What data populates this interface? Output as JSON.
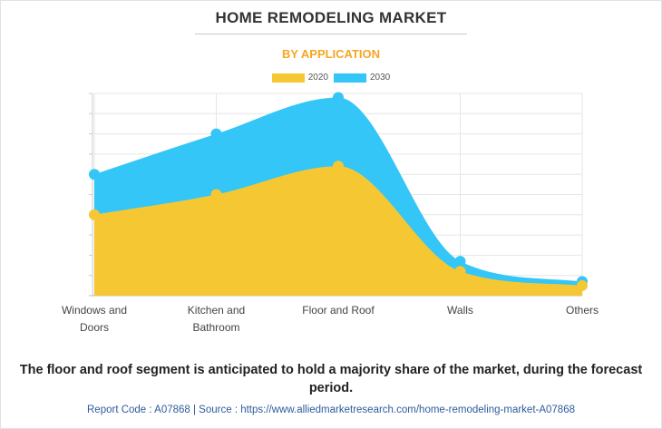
{
  "header": {
    "title": "HOME REMODELING MARKET",
    "subtitle": "BY APPLICATION"
  },
  "chart_data": {
    "type": "area",
    "categories": [
      [
        "Windows and",
        "Doors"
      ],
      [
        "Kitchen and",
        "Bathroom"
      ],
      [
        "Floor and Roof"
      ],
      [
        "Walls"
      ],
      [
        "Others"
      ]
    ],
    "series": [
      {
        "name": "2020",
        "values": [
          40,
          50,
          64,
          12,
          5
        ],
        "color": "#f5c833"
      },
      {
        "name": "2030",
        "values": [
          60,
          80,
          98,
          17,
          7
        ],
        "color": "#33c6f7"
      }
    ],
    "ylim": [
      0,
      100
    ],
    "y_axis_labels_shown": false,
    "grid": true,
    "legend_position": "top-center"
  },
  "caption": "The floor and roof segment is anticipated to hold a majority share of the market, during the forecast period.",
  "footer": "Report Code : A07868  |  Source : https://www.alliedmarketresearch.com/home-remodeling-market-A07868"
}
